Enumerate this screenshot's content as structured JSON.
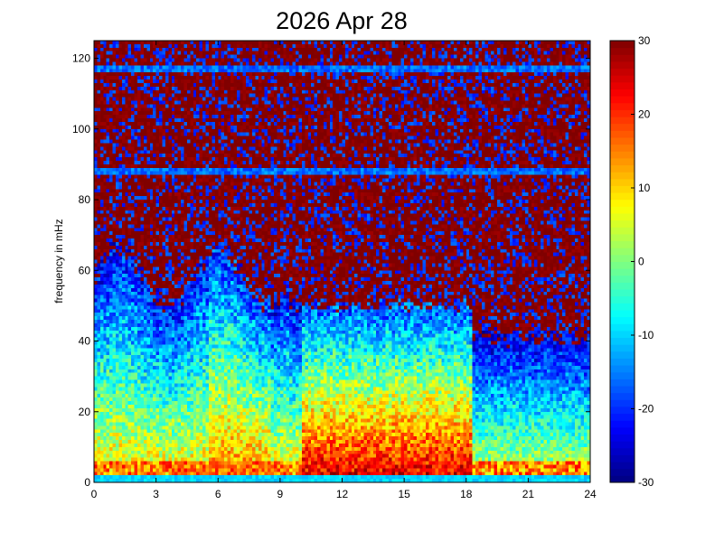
{
  "chart_data": {
    "type": "heatmap",
    "title": "2026 Apr 28",
    "xlabel": "",
    "ylabel": "frequency in mHz",
    "xlim": [
      0,
      24
    ],
    "ylim": [
      0,
      125
    ],
    "x_ticks": [
      0,
      3,
      6,
      9,
      12,
      15,
      18,
      21,
      24
    ],
    "x_tick_labels": [
      "0",
      "3",
      "6",
      "9",
      "12",
      "15",
      "18",
      "21",
      "24"
    ],
    "y_ticks": [
      0,
      20,
      40,
      60,
      80,
      100,
      120
    ],
    "y_tick_labels": [
      "0",
      "20",
      "40",
      "60",
      "80",
      "100",
      "120"
    ],
    "colorbar": {
      "colormap": "jet",
      "clim": [
        -30,
        30
      ],
      "ticks": [
        -30,
        -20,
        -10,
        0,
        10,
        20,
        30
      ],
      "tick_labels": [
        "-30",
        "-20",
        "-10",
        "0",
        "10",
        "20",
        "30"
      ]
    },
    "grid": false,
    "description_of_field": {
      "high_value_region": "above ~60 mHz (dark red, ~30) with noisy blue speckle",
      "horizontal_bands_low_value": [
        88,
        117
      ],
      "low_frequency_band_low_value": [
        0,
        2
      ],
      "active_period_hours": [
        10,
        18.5
      ],
      "active_period_peak_frequency_mHz": [
        0,
        25
      ],
      "active_period_peak_value": 25
    }
  },
  "colors": {
    "background": "#ffffff",
    "axis": "#000000"
  }
}
